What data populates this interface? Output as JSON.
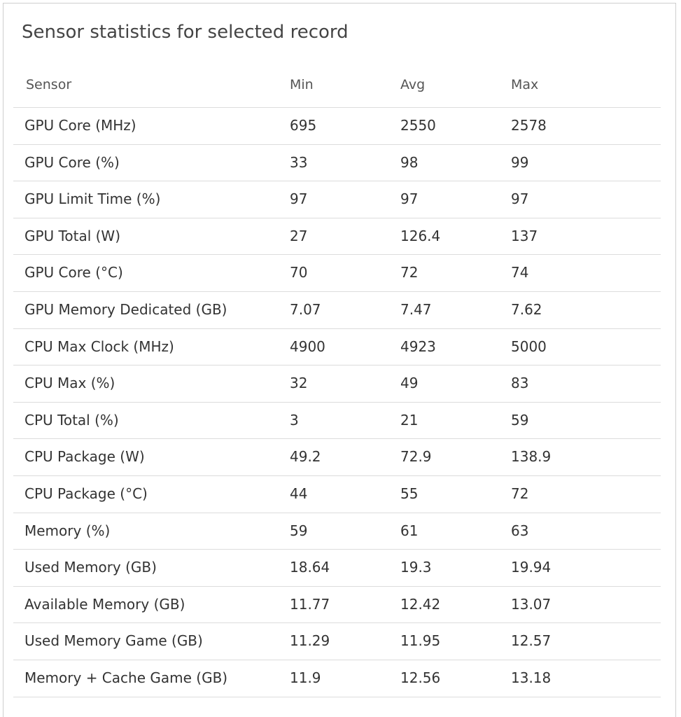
{
  "title": "Sensor statistics for selected record",
  "table": {
    "columns": [
      "Sensor",
      "Min",
      "Avg",
      "Max"
    ],
    "rows": [
      [
        "GPU Core (MHz)",
        "695",
        "2550",
        "2578"
      ],
      [
        "GPU Core (%)",
        "33",
        "98",
        "99"
      ],
      [
        "GPU Limit Time (%)",
        "97",
        "97",
        "97"
      ],
      [
        "GPU Total (W)",
        "27",
        "126.4",
        "137"
      ],
      [
        "GPU Core (°C)",
        "70",
        "72",
        "74"
      ],
      [
        "GPU Memory Dedicated (GB)",
        "7.07",
        "7.47",
        "7.62"
      ],
      [
        "CPU Max Clock (MHz)",
        "4900",
        "4923",
        "5000"
      ],
      [
        "CPU Max (%)",
        "32",
        "49",
        "83"
      ],
      [
        "CPU Total (%)",
        "3",
        "21",
        "59"
      ],
      [
        "CPU Package (W)",
        "49.2",
        "72.9",
        "138.9"
      ],
      [
        "CPU Package (°C)",
        "44",
        "55",
        "72"
      ],
      [
        "Memory (%)",
        "59",
        "61",
        "63"
      ],
      [
        "Used Memory (GB)",
        "18.64",
        "19.3",
        "19.94"
      ],
      [
        "Available Memory (GB)",
        "11.77",
        "12.42",
        "13.07"
      ],
      [
        "Used Memory Game (GB)",
        "11.29",
        "11.95",
        "12.57"
      ],
      [
        "Memory + Cache Game (GB)",
        "11.9",
        "12.56",
        "13.18"
      ]
    ]
  }
}
